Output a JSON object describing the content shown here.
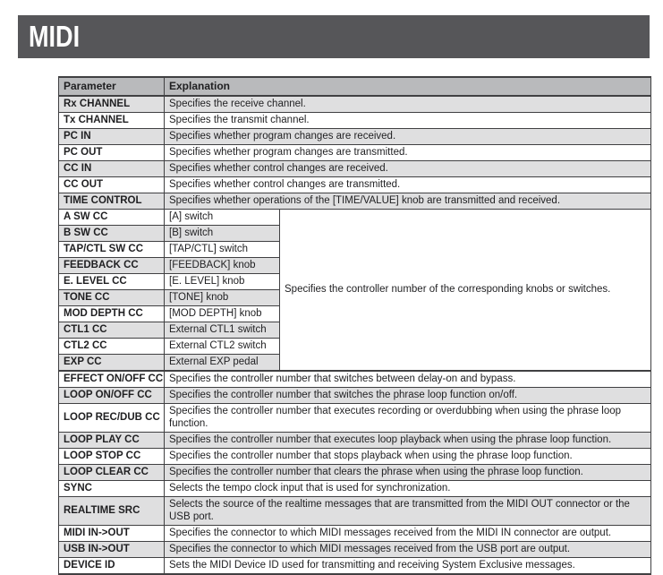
{
  "page": {
    "section_title": "MIDI"
  },
  "colors": {
    "header_bar": "#565659",
    "table_header_bg": "#b9babc",
    "row_stripe": "#dfdfe0",
    "border": "#404042"
  },
  "table": {
    "columns": [
      "Parameter",
      "Explanation"
    ],
    "cc_note": "Specifies the controller number  of the corresponding knobs or switches.",
    "rows": [
      {
        "param": "Rx CHANNEL",
        "explanation": "Specifies the receive channel.",
        "shaded": true
      },
      {
        "param": "Tx CHANNEL",
        "explanation": "Specifies the transmit channel.",
        "shaded": false
      },
      {
        "param": "PC IN",
        "explanation": "Specifies whether program changes are received.",
        "shaded": true
      },
      {
        "param": "PC OUT",
        "explanation": "Specifies whether program changes are transmitted.",
        "shaded": false
      },
      {
        "param": "CC IN",
        "explanation": "Specifies whether control changes are received.",
        "shaded": true
      },
      {
        "param": "CC OUT",
        "explanation": "Specifies whether control changes are transmitted.",
        "shaded": false
      },
      {
        "param": "TIME CONTROL",
        "explanation": "Specifies whether operations of the [TIME/VALUE] knob are transmitted and received.",
        "shaded": true
      },
      {
        "param": "A SW CC",
        "control": "[A] switch",
        "shaded": false
      },
      {
        "param": "B SW CC",
        "control": "[B] switch",
        "shaded": true
      },
      {
        "param": "TAP/CTL SW CC",
        "control": "[TAP/CTL] switch",
        "shaded": false
      },
      {
        "param": "FEEDBACK CC",
        "control": "[FEEDBACK] knob",
        "shaded": true
      },
      {
        "param": "E. LEVEL CC",
        "control": "[E. LEVEL] knob",
        "shaded": false
      },
      {
        "param": "TONE CC",
        "control": "[TONE] knob",
        "shaded": true
      },
      {
        "param": "MOD DEPTH CC",
        "control": "[MOD DEPTH] knob",
        "shaded": false
      },
      {
        "param": "CTL1 CC",
        "control": "External CTL1 switch",
        "shaded": true
      },
      {
        "param": "CTL2 CC",
        "control": "External CTL2 switch",
        "shaded": false
      },
      {
        "param": "EXP CC",
        "control": "External EXP pedal",
        "shaded": true
      },
      {
        "param": "EFFECT ON/OFF CC",
        "explanation": "Specifies the controller number  that switches between delay-on and bypass.",
        "shaded": false
      },
      {
        "param": "LOOP ON/OFF CC",
        "explanation": "Specifies the controller number  that switches the phrase loop function on/off.",
        "shaded": true
      },
      {
        "param": "LOOP REC/DUB CC",
        "explanation": "Specifies the controller number  that executes recording or overdubbing when using the phrase loop function.",
        "shaded": false
      },
      {
        "param": "LOOP PLAY CC",
        "explanation": "Specifies the controller number  that executes loop playback when using the phrase loop function.",
        "shaded": true
      },
      {
        "param": "LOOP STOP CC",
        "explanation": "Specifies the controller number  that stops playback when using the phrase loop function.",
        "shaded": false
      },
      {
        "param": "LOOP CLEAR CC",
        "explanation": "Specifies the controller number  that clears the phrase when using the phrase loop function.",
        "shaded": true
      },
      {
        "param": "SYNC",
        "explanation": "Selects the tempo clock input that is used for synchronization.",
        "shaded": false
      },
      {
        "param": "REALTIME SRC",
        "explanation": "Selects the source of the realtime messages that are transmitted from the MIDI OUT connector or the USB port.",
        "shaded": true
      },
      {
        "param": "MIDI IN->OUT",
        "explanation": "Specifies the connector to which MIDI messages received from the MIDI IN connector are output.",
        "shaded": false
      },
      {
        "param": "USB IN->OUT",
        "explanation": "Specifies the connector to which MIDI messages received from the USB port are output.",
        "shaded": true
      },
      {
        "param": "DEVICE ID",
        "explanation": "Sets the MIDI Device ID used for transmitting and receiving System Exclusive messages.",
        "shaded": false
      }
    ]
  }
}
